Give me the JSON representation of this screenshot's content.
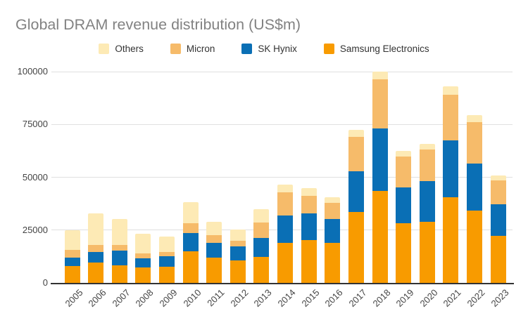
{
  "title": "Global DRAM revenue distribution (US$m)",
  "legend": {
    "position": "top",
    "items": [
      {
        "label": "Others",
        "color": "#fdeab5"
      },
      {
        "label": "Micron",
        "color": "#f6bb6a"
      },
      {
        "label": "SK Hynix",
        "color": "#0a6fb5"
      },
      {
        "label": "Samsung Electronics",
        "color": "#f89b00"
      }
    ]
  },
  "colors": {
    "gridline": "#e0e0e0",
    "axis_line": "#333333",
    "axis_text": "#444444",
    "title_text": "#828282"
  },
  "chart_data": {
    "type": "bar",
    "stacked": true,
    "title": "Global DRAM revenue distribution (US$m)",
    "xlabel": "",
    "ylabel": "",
    "grid": true,
    "legend_position": "top",
    "ylim": [
      0,
      100000
    ],
    "y_ticks": [
      0,
      25000,
      50000,
      75000,
      100000
    ],
    "y_tick_labels": [
      "0",
      "25000",
      "50000",
      "75000",
      "100000"
    ],
    "categories": [
      "2005",
      "2006",
      "2007",
      "2008",
      "2009",
      "2010",
      "2011",
      "2012",
      "2013",
      "2014",
      "2015",
      "2016",
      "2017",
      "2018",
      "2019",
      "2020",
      "2021",
      "2022",
      "2023"
    ],
    "series": [
      {
        "name": "Samsung Electronics",
        "color": "#f89b00",
        "values": [
          8000,
          9600,
          8300,
          7400,
          7500,
          14800,
          12100,
          10800,
          12400,
          18800,
          20300,
          19100,
          33400,
          43500,
          28200,
          29000,
          40600,
          34300,
          22100
        ]
      },
      {
        "name": "SK Hynix",
        "color": "#0a6fb5",
        "values": [
          4000,
          5100,
          7000,
          4300,
          5200,
          8800,
          7000,
          6600,
          8900,
          13100,
          12500,
          11300,
          19300,
          29700,
          17100,
          19100,
          26900,
          22300,
          15100
        ]
      },
      {
        "name": "Micron",
        "color": "#f6bb6a",
        "values": [
          3500,
          3200,
          2600,
          2100,
          2000,
          4700,
          3500,
          2500,
          7400,
          11000,
          8400,
          7400,
          16400,
          23000,
          14400,
          14900,
          21600,
          19500,
          11300
        ]
      },
      {
        "name": "Others",
        "color": "#fdeab5",
        "values": [
          9300,
          15000,
          12300,
          9400,
          7200,
          10000,
          6400,
          5500,
          6100,
          3600,
          3700,
          2800,
          3300,
          3700,
          2800,
          2800,
          3900,
          3300,
          2300
        ]
      }
    ]
  }
}
